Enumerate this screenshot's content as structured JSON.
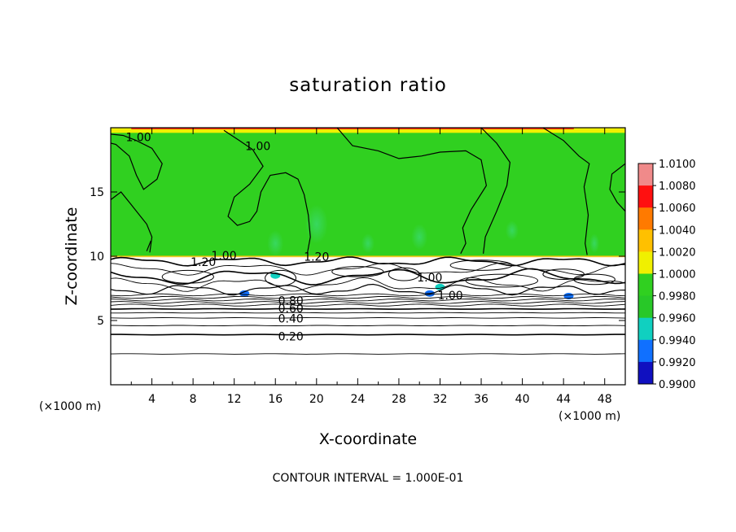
{
  "chart_data": {
    "type": "heatmap",
    "title": "saturation ratio",
    "xlabel": "X-coordinate",
    "ylabel": "Z-coordinate",
    "x_unit_left": "(×1000 m)",
    "x_unit_right": "(×1000 m)",
    "footer": "CONTOUR INTERVAL = 1.000E-01",
    "xlim": [
      0,
      50
    ],
    "ylim": [
      0,
      20
    ],
    "x_ticks": [
      4,
      8,
      12,
      16,
      20,
      24,
      28,
      32,
      36,
      40,
      44,
      48
    ],
    "y_ticks": [
      5,
      10,
      15
    ],
    "colorbar": {
      "labels": [
        "1.0100",
        "1.0080",
        "1.0060",
        "1.0040",
        "1.0020",
        "1.0000",
        "0.9980",
        "0.9960",
        "0.9940",
        "0.9920",
        "0.9900"
      ],
      "colors": [
        "#f08a8a",
        "#ff1010",
        "#ff7a00",
        "#ffc000",
        "#f0f000",
        "#30d020",
        "#28c828",
        "#10d0c0",
        "#1070ff",
        "#1010c0",
        "#8020a0"
      ]
    },
    "fill_regions": [
      {
        "name": "upper-saturated-layer",
        "z_range": [
          10,
          20
        ],
        "value": 1.0,
        "color": "#30d020"
      },
      {
        "name": "top-supersaturated-band",
        "z_range": [
          19.6,
          20
        ],
        "value": 1.003,
        "color": "#f0f000"
      }
    ],
    "contour_labels": [
      {
        "text": "1.00",
        "x": 2.7,
        "z": 19.2
      },
      {
        "text": "1.00",
        "x": 14.3,
        "z": 18.5
      },
      {
        "text": "1.00",
        "x": 11.0,
        "z": 10.0
      },
      {
        "text": "1.20",
        "x": 9.0,
        "z": 9.5
      },
      {
        "text": "1.20",
        "x": 20.0,
        "z": 9.9
      },
      {
        "text": "1.00",
        "x": 31.0,
        "z": 8.3
      },
      {
        "text": "1.00",
        "x": 33.0,
        "z": 6.9
      },
      {
        "text": "0.80",
        "x": 17.5,
        "z": 6.5
      },
      {
        "text": "0.60",
        "x": 17.5,
        "z": 5.9
      },
      {
        "text": "0.40",
        "x": 17.5,
        "z": 5.1
      },
      {
        "text": "0.20",
        "x": 17.5,
        "z": 3.7
      }
    ],
    "stratified_contour_levels_z": [
      2.4,
      3.9,
      4.6,
      5.2,
      5.6,
      5.9,
      6.2,
      6.4,
      6.6,
      6.8,
      7.0
    ]
  }
}
